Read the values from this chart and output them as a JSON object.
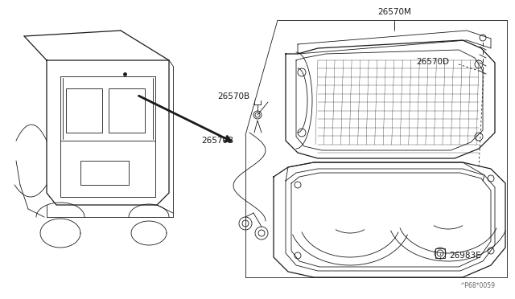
{
  "bg_color": "#ffffff",
  "line_color": "#1a1a1a",
  "fig_width": 6.4,
  "fig_height": 3.72,
  "dpi": 100,
  "labels": {
    "part_M": "26570M",
    "part_D": "26570D",
    "part_B1": "26570B",
    "part_B2": "26570B",
    "part_E": "26983E",
    "watermark": "^P68*0059"
  }
}
